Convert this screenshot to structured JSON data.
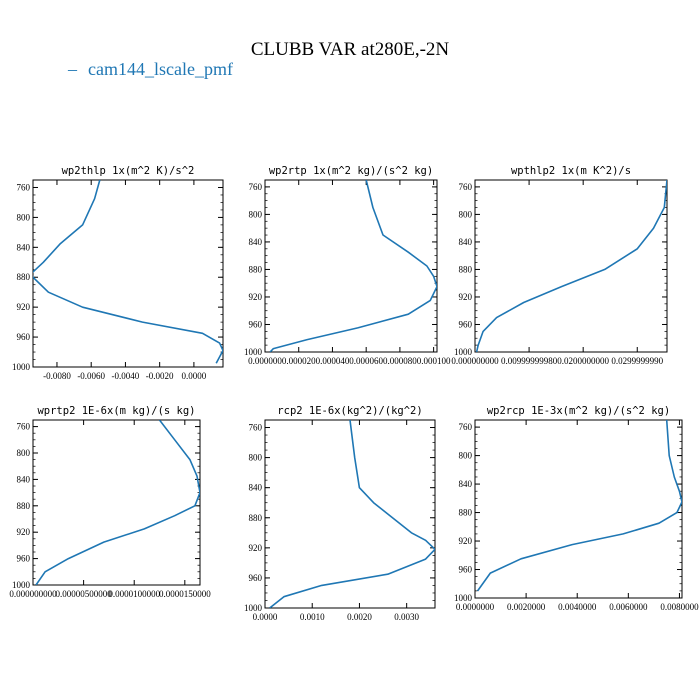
{
  "title": "CLUBB VAR at280E,-2N",
  "legend": {
    "entries": [
      {
        "label": "cam144_lscale_pmf",
        "color": "#1f77b4"
      }
    ]
  },
  "chart_data": [
    {
      "type": "line",
      "title": "wp2thlp   1x(m^2 K)/s^2",
      "xlim": [
        -0.0094,
        0.0017
      ],
      "ylim": [
        1000,
        750
      ],
      "x_ticks": [
        -0.008,
        -0.006,
        -0.004,
        -0.002,
        0.0
      ],
      "x_tick_labels": [
        "-0.0080",
        "-0.0060",
        "-0.0040",
        "-0.0020",
        "0.0000"
      ],
      "y_ticks": [
        760,
        800,
        840,
        880,
        920,
        960,
        1000
      ],
      "series": [
        {
          "color": "#1f77b4",
          "x": [
            -0.0055,
            -0.0058,
            -0.0065,
            -0.0078,
            -0.0088,
            -0.0095,
            -0.0094,
            -0.0085,
            -0.0065,
            -0.003,
            0.0005,
            0.0015,
            0.0017,
            0.0013
          ],
          "y": [
            750,
            775,
            810,
            835,
            860,
            875,
            880,
            900,
            920,
            940,
            955,
            968,
            978,
            995
          ]
        }
      ]
    },
    {
      "type": "line",
      "title": "wp2rtp   1x(m^2 kg)/(s^2 kg)",
      "xlim": [
        0.0,
        0.000102
      ],
      "ylim": [
        1000,
        750
      ],
      "x_ticks": [
        0.0,
        2e-05,
        4e-05,
        6e-05,
        8e-05,
        0.0001
      ],
      "x_tick_labels": [
        "0.000000",
        "0.000020",
        "0.000040",
        "0.000060",
        "0.000080",
        "0.000100"
      ],
      "y_ticks": [
        760,
        800,
        840,
        880,
        920,
        960,
        1000
      ],
      "series": [
        {
          "color": "#1f77b4",
          "x": [
            6e-05,
            6.4e-05,
            7e-05,
            8.5e-05,
            9.6e-05,
            0.0001,
            0.000102,
            9.8e-05,
            8.5e-05,
            5.5e-05,
            2.5e-05,
            5e-06,
            3e-06
          ],
          "y": [
            750,
            790,
            830,
            855,
            875,
            890,
            905,
            925,
            945,
            965,
            982,
            995,
            1000
          ]
        }
      ]
    },
    {
      "type": "line",
      "title": "wpthlp2   1x(m K^2)/s",
      "xlim": [
        0.0,
        0.0355
      ],
      "ylim": [
        1000,
        750
      ],
      "x_ticks": [
        0.0,
        0.01,
        0.02,
        0.03
      ],
      "x_tick_labels": [
        "0.000000000",
        "0.00999999980",
        "0.0200000000",
        "0.0299999990"
      ],
      "y_ticks": [
        760,
        800,
        840,
        880,
        920,
        960,
        1000
      ],
      "series": [
        {
          "color": "#1f77b4",
          "x": [
            0.0355,
            0.035,
            0.033,
            0.03,
            0.024,
            0.016,
            0.009,
            0.004,
            0.0015,
            0.0006,
            0.0003
          ],
          "y": [
            750,
            790,
            820,
            850,
            880,
            905,
            928,
            950,
            970,
            990,
            1000
          ]
        }
      ]
    },
    {
      "type": "line",
      "title": "wprtp2   1E-6x(m kg)/(s kg)",
      "xlim": [
        0.0,
        1.65e-05
      ],
      "ylim": [
        1000,
        750
      ],
      "x_ticks": [
        0.0,
        5e-06,
        1e-05,
        1.5e-05
      ],
      "x_tick_labels": [
        "0.000000000",
        "0.00000500000",
        "0.0000100000",
        "0.0000150000"
      ],
      "y_ticks": [
        760,
        800,
        840,
        880,
        920,
        960,
        1000
      ],
      "series": [
        {
          "color": "#1f77b4",
          "x": [
            1.25e-05,
            1.4e-05,
            1.55e-05,
            1.62e-05,
            1.65e-05,
            1.6e-05,
            1.4e-05,
            1.1e-05,
            7e-06,
            3.5e-06,
            1.2e-06,
            3e-07
          ],
          "y": [
            750,
            780,
            810,
            835,
            860,
            880,
            895,
            915,
            935,
            960,
            980,
            1000
          ]
        }
      ]
    },
    {
      "type": "line",
      "title": "rcp2   1E-6x(kg^2)/(kg^2)",
      "xlim": [
        0.0,
        0.0036
      ],
      "ylim": [
        1000,
        750
      ],
      "x_ticks": [
        0.0,
        0.001,
        0.002,
        0.003
      ],
      "x_tick_labels": [
        "0.0000",
        "0.0010",
        "0.0020",
        "0.0030"
      ],
      "y_ticks": [
        760,
        800,
        840,
        880,
        920,
        960,
        1000
      ],
      "series": [
        {
          "color": "#1f77b4",
          "x": [
            0.0018,
            0.0019,
            0.002,
            0.0023,
            0.0027,
            0.0031,
            0.0034,
            0.0036,
            0.0034,
            0.0026,
            0.0012,
            0.0004,
            0.0001
          ],
          "y": [
            750,
            800,
            840,
            860,
            880,
            900,
            910,
            922,
            935,
            955,
            970,
            985,
            1000
          ]
        }
      ]
    },
    {
      "type": "line",
      "title": "wp2rcp   1E-3x(m^2 kg)/(s^2 kg)",
      "xlim": [
        0.0,
        0.0081
      ],
      "ylim": [
        1000,
        750
      ],
      "x_ticks": [
        0.0,
        0.002,
        0.004,
        0.006,
        0.008
      ],
      "x_tick_labels": [
        "0.0000000",
        "0.0020000",
        "0.0040000",
        "0.0060000",
        "0.0080000"
      ],
      "y_ticks": [
        760,
        800,
        840,
        880,
        920,
        960,
        1000
      ],
      "series": [
        {
          "color": "#1f77b4",
          "x": [
            0.0075,
            0.0076,
            0.0078,
            0.008,
            0.0081,
            0.0079,
            0.0072,
            0.0058,
            0.0038,
            0.0018,
            0.0006,
            0.0001
          ],
          "y": [
            750,
            800,
            830,
            850,
            865,
            880,
            895,
            910,
            925,
            945,
            965,
            990
          ]
        }
      ]
    }
  ]
}
